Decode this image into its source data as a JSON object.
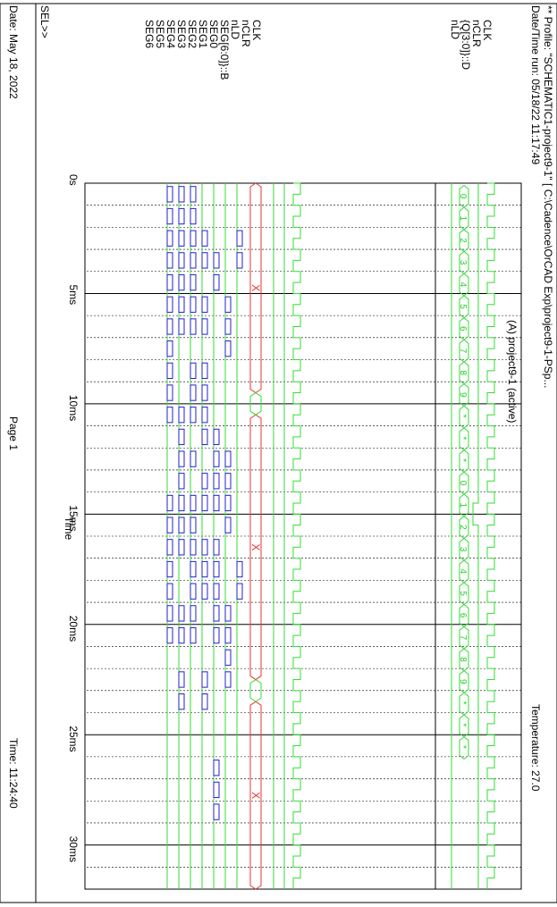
{
  "header": {
    "profile": "** Profile: \"SCHEMATIC1-project9-1\"  [ C:\\Cadence\\OrCAD Exp\\project9-1-PSp...",
    "date_time_run": "Date/Time run: 05/18/22 11:17:49",
    "temperature": "Temperature: 27.0"
  },
  "plot_title": "(A) project9-1 (active)",
  "footer": {
    "sel": "SEL>>",
    "date": "Date: May 18, 2022",
    "page": "Page 1",
    "time_label": "Time",
    "time": "Time: 11:24:40"
  },
  "top_panel": {
    "signals": [
      "CLK",
      "nCLR",
      "{Q[3:0]}::D",
      "nLD"
    ]
  },
  "bottom_panel": {
    "signals": [
      "CLK",
      "nCLR",
      "nLD",
      "SEG[6:0]}::B",
      "SEG0",
      "SEG1",
      "SEG2",
      "SEG3",
      "SEG4",
      "SEG5",
      "SEG6"
    ]
  },
  "chart_data": {
    "type": "timing-diagram",
    "x_unit": "ms",
    "xlim": [
      0,
      32
    ],
    "x_ticks": [
      "0s",
      "5ms",
      "10ms",
      "15ms",
      "20ms",
      "25ms",
      "30ms"
    ],
    "x_tick_values": [
      0,
      5,
      10,
      15,
      20,
      25,
      30
    ],
    "colors": {
      "digital": "#33dd33",
      "bus": "#33dd33",
      "unknown": "#ee3333",
      "segment": "#2222cc"
    },
    "clock_period_ms": 1,
    "counter_bus": {
      "name": "{Q[3:0]}::D",
      "segments": [
        {
          "label": "0"
        },
        {
          "label": "1"
        },
        {
          "label": "2"
        },
        {
          "label": "3"
        },
        {
          "label": "4"
        },
        {
          "label": "5"
        },
        {
          "label": "6"
        },
        {
          "label": "7"
        },
        {
          "label": "8"
        },
        {
          "label": "9"
        },
        {
          "label": "*"
        },
        {
          "label": "*"
        },
        {
          "label": "*"
        },
        {
          "label": "0"
        },
        {
          "label": "1"
        },
        {
          "label": "2"
        },
        {
          "label": "3"
        },
        {
          "label": "4"
        },
        {
          "label": "5"
        },
        {
          "label": "6"
        },
        {
          "label": "7"
        },
        {
          "label": "8"
        },
        {
          "label": "9"
        },
        {
          "label": "*"
        },
        {
          "label": "*"
        },
        {
          "label": "*"
        }
      ]
    },
    "seg_bus": {
      "name": "SEG[6:0]}::B",
      "segments": [
        {
          "start": 0,
          "end": 9.5,
          "label": "X"
        },
        {
          "start": 10.5,
          "end": 22.5,
          "label": "X"
        },
        {
          "start": 23.5,
          "end": 32,
          "label": "X"
        }
      ]
    },
    "digit_segments": {
      "SEG0": [
        2,
        3,
        17,
        18
      ],
      "SEG1": [
        5,
        6,
        7,
        12,
        13,
        14,
        15,
        19,
        20,
        21,
        22
      ],
      "SEG2": [
        3,
        4,
        11,
        12,
        13,
        14,
        16,
        17,
        18,
        19,
        20,
        26,
        27,
        28
      ],
      "SEG3": [
        2,
        3,
        5,
        6,
        8,
        9,
        10,
        11,
        13,
        14,
        16,
        17,
        18,
        22,
        23
      ],
      "SEG4": [
        0,
        1,
        2,
        3,
        4,
        5,
        6,
        8,
        9,
        10,
        12,
        14,
        15,
        16,
        17,
        18,
        19,
        20
      ],
      "SEG5": [
        0,
        1,
        2,
        3,
        4,
        5,
        6,
        10,
        11,
        12,
        13,
        14,
        15,
        16,
        19,
        20,
        22,
        23
      ],
      "SEG6": [
        0,
        1,
        2,
        3,
        4,
        5,
        6,
        7,
        8,
        9,
        10,
        14,
        15,
        16,
        17,
        18,
        19,
        20
      ]
    }
  }
}
